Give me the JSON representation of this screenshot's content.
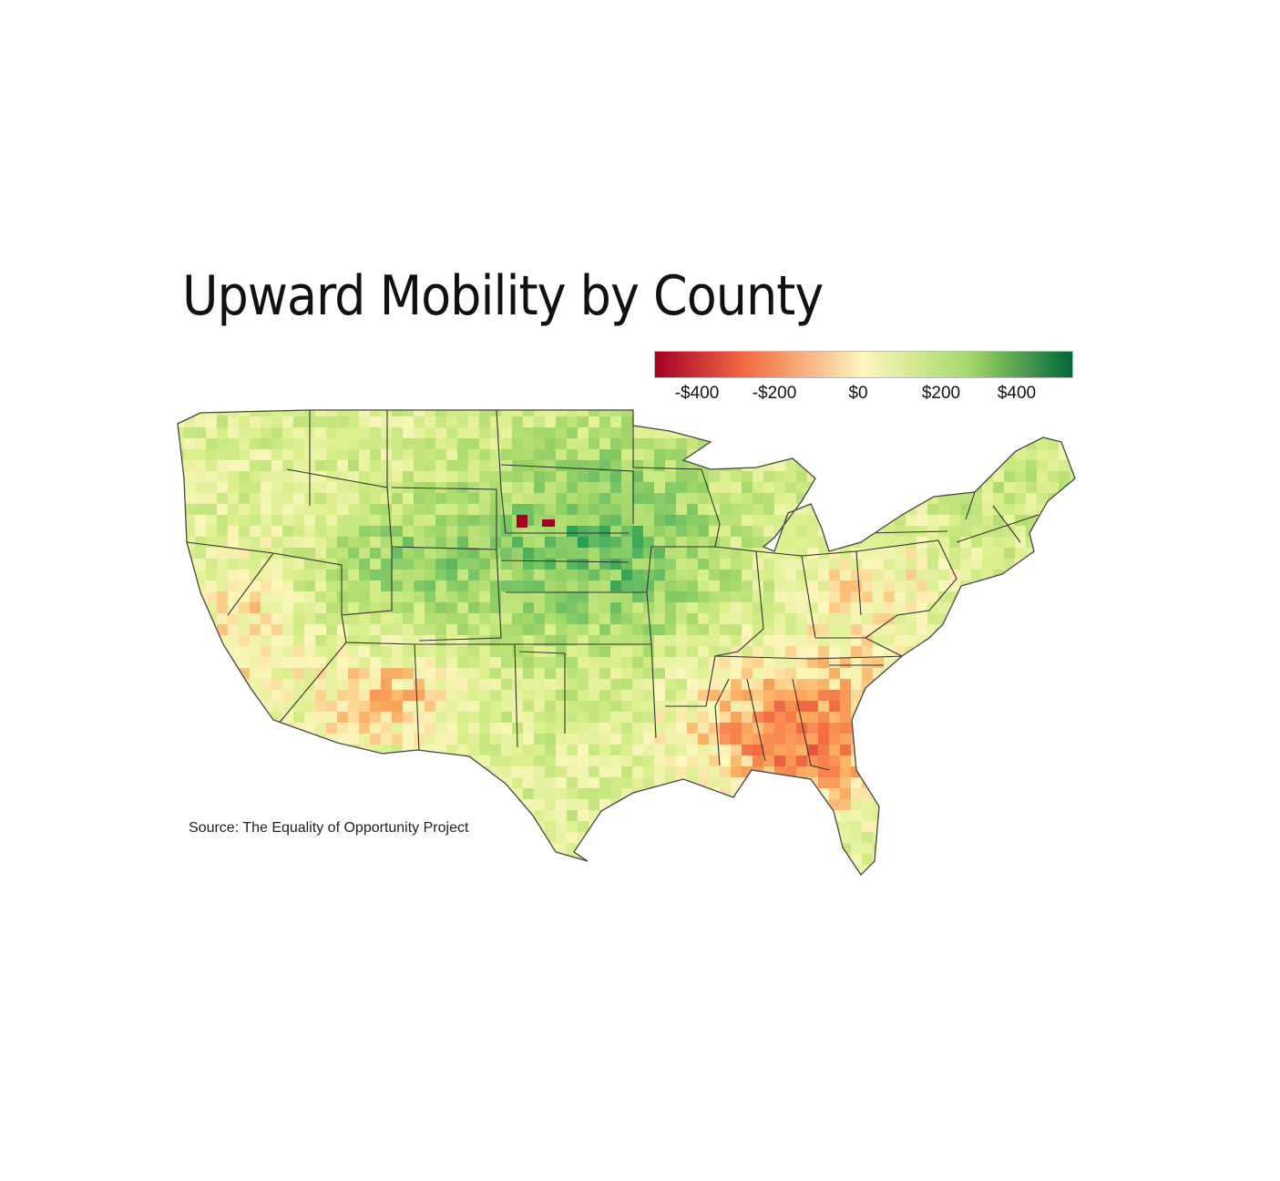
{
  "title": "Upward Mobility by County",
  "legend": {
    "ticks": [
      "-$400",
      "-$200",
      "$0",
      "$200",
      "$400"
    ],
    "colors": {
      "low": "#a50026",
      "mid_low": "#f46d43",
      "mid": "#fdf6bd",
      "mid_high": "#a6d96a",
      "high": "#006837"
    }
  },
  "map": {
    "region": "contiguous United States",
    "layer": "counties choropleth with state borders",
    "high_areas": [
      "Northern Great Plains",
      "Midwest",
      "Mountain West"
    ],
    "low_areas": [
      "Southeast",
      "Deep South",
      "Southwest"
    ]
  },
  "source": "Source: The Equality of Opportunity Project"
}
